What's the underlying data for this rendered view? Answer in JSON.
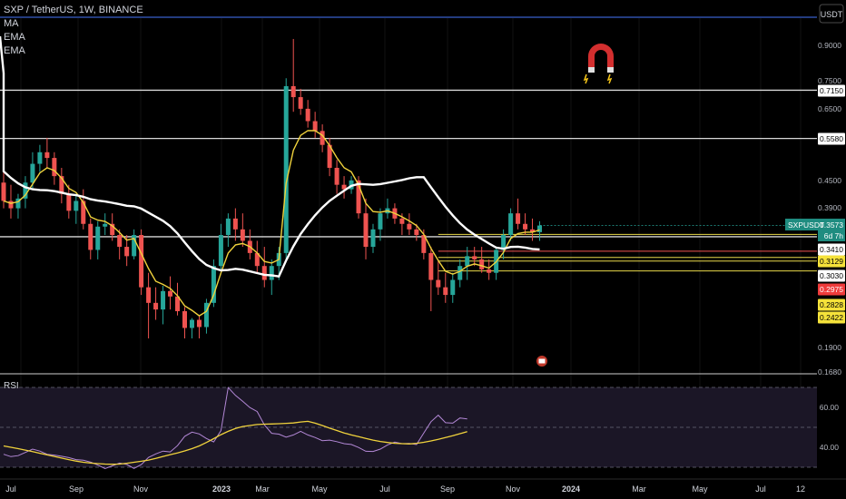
{
  "header": {
    "symbol_line": "SXP / TetherUS, 1W, BINANCE",
    "indicators": [
      "MA",
      "EMA",
      "EMA"
    ]
  },
  "currency_button": "USDT",
  "rsi_label": "RSI",
  "colors": {
    "up": "#26a69a",
    "down": "#ef5350",
    "ma": "#ffffff",
    "ema": "#f0d23c",
    "rsi": "#b388d6",
    "rsi_ma": "#f0d23c"
  },
  "chart_data": {
    "type": "candlestick",
    "price_scale": "log",
    "price_axis_ticks": [
      "0.9000",
      "0.7500",
      "0.6500",
      "0.4500",
      "0.3900",
      "0.1900",
      "0.1680"
    ],
    "price_tags": [
      {
        "text": "0.7150",
        "style": "white"
      },
      {
        "text": "0.5580",
        "style": "white"
      },
      {
        "text": "0.3410",
        "style": "white"
      },
      {
        "text": "0.3129",
        "style": "yellow"
      },
      {
        "text": "0.3030",
        "style": "white"
      },
      {
        "text": "0.2975",
        "style": "red"
      },
      {
        "text": "0.2828",
        "style": "yellow"
      },
      {
        "text": "0.2422",
        "style": "yellow"
      }
    ],
    "current": {
      "symbol": "SXPUSDT",
      "price": "0.3573",
      "countdown": "6d 7h"
    },
    "horizontal_levels": [
      0.715,
      0.558,
      0.337
    ],
    "support_levels": [
      0.341,
      0.3129,
      0.303,
      0.2975,
      0.2828
    ],
    "time_labels": [
      "Jul",
      "Sep",
      "Nov",
      "2023",
      "Mar",
      "May",
      "Jul",
      "Sep",
      "Nov",
      "2024",
      "Mar",
      "May",
      "Jul",
      "12"
    ],
    "rsi": {
      "levels": [
        "60.00",
        "40.00"
      ],
      "values": [
        36.5,
        35.3,
        35.8,
        37.4,
        39.1,
        38.1,
        36.5,
        36.1,
        35.5,
        34.8,
        33.8,
        33.5,
        32.6,
        31.1,
        29.3,
        30.7,
        32.1,
        31.4,
        29.4,
        31.3,
        34.9,
        36.7,
        38.1,
        37.7,
        40.8,
        45.5,
        47.6,
        46.7,
        44.4,
        42.7,
        48.3,
        69.9,
        66.0,
        63.1,
        59.9,
        57.9,
        51.2,
        47.0,
        46.6,
        45.1,
        46.2,
        48.0,
        46.2,
        44.9,
        43.3,
        43.6,
        42.8,
        41.8,
        41.4,
        39.9,
        38.0,
        37.9,
        39.1,
        41.2,
        42.6,
        41.8,
        41.9,
        41.4,
        47.1,
        52.8,
        56.1,
        52.3,
        52.1,
        54.7,
        54.2
      ],
      "ma_values": [
        40.7,
        40.0,
        39.3,
        38.6,
        37.8,
        37.0,
        36.2,
        35.4,
        34.6,
        33.8,
        33.1,
        32.5,
        32.1,
        31.8,
        31.6,
        31.5,
        31.6,
        32.0,
        32.5,
        33.0,
        33.6,
        34.4,
        35.4,
        36.3,
        37.2,
        38.2,
        39.3,
        40.7,
        42.4,
        44.3,
        46.3,
        48.0,
        49.4,
        50.4,
        50.9,
        51.4,
        51.6,
        51.7,
        51.8,
        52.0,
        52.2,
        52.7,
        53.0,
        52.1,
        50.9,
        49.6,
        48.4,
        47.2,
        46.2,
        45.3,
        44.4,
        43.6,
        42.9,
        42.4,
        42.0,
        41.8,
        41.7,
        42.0,
        42.5,
        43.2,
        44.0,
        44.9,
        45.8,
        46.8,
        47.8
      ]
    },
    "candles": [
      [
        0.445,
        0.5,
        0.39,
        0.405
      ],
      [
        0.405,
        0.44,
        0.37,
        0.39
      ],
      [
        0.39,
        0.42,
        0.37,
        0.41
      ],
      [
        0.41,
        0.46,
        0.39,
        0.445
      ],
      [
        0.445,
        0.52,
        0.43,
        0.49
      ],
      [
        0.49,
        0.54,
        0.47,
        0.52
      ],
      [
        0.52,
        0.56,
        0.48,
        0.505
      ],
      [
        0.505,
        0.52,
        0.44,
        0.46
      ],
      [
        0.46,
        0.48,
        0.4,
        0.42
      ],
      [
        0.42,
        0.44,
        0.37,
        0.385
      ],
      [
        0.385,
        0.42,
        0.36,
        0.405
      ],
      [
        0.405,
        0.43,
        0.35,
        0.36
      ],
      [
        0.36,
        0.37,
        0.3,
        0.315
      ],
      [
        0.315,
        0.365,
        0.3,
        0.355
      ],
      [
        0.355,
        0.38,
        0.34,
        0.36
      ],
      [
        0.36,
        0.38,
        0.33,
        0.34
      ],
      [
        0.34,
        0.35,
        0.3,
        0.32
      ],
      [
        0.32,
        0.34,
        0.29,
        0.305
      ],
      [
        0.305,
        0.35,
        0.3,
        0.34
      ],
      [
        0.34,
        0.35,
        0.25,
        0.26
      ],
      [
        0.26,
        0.28,
        0.2,
        0.24
      ],
      [
        0.24,
        0.26,
        0.22,
        0.232
      ],
      [
        0.232,
        0.262,
        0.215,
        0.255
      ],
      [
        0.255,
        0.275,
        0.232,
        0.248
      ],
      [
        0.248,
        0.266,
        0.225,
        0.23
      ],
      [
        0.23,
        0.235,
        0.2,
        0.211
      ],
      [
        0.211,
        0.222,
        0.2,
        0.22
      ],
      [
        0.22,
        0.225,
        0.2,
        0.212
      ],
      [
        0.212,
        0.245,
        0.205,
        0.24
      ],
      [
        0.24,
        0.3,
        0.235,
        0.29
      ],
      [
        0.29,
        0.36,
        0.285,
        0.34
      ],
      [
        0.34,
        0.38,
        0.32,
        0.37
      ],
      [
        0.37,
        0.39,
        0.33,
        0.35
      ],
      [
        0.35,
        0.38,
        0.32,
        0.33
      ],
      [
        0.33,
        0.35,
        0.3,
        0.31
      ],
      [
        0.31,
        0.33,
        0.28,
        0.29
      ],
      [
        0.29,
        0.32,
        0.26,
        0.27
      ],
      [
        0.27,
        0.3,
        0.25,
        0.29
      ],
      [
        0.29,
        0.32,
        0.27,
        0.31
      ],
      [
        0.31,
        0.76,
        0.3,
        0.73
      ],
      [
        0.73,
        0.93,
        0.64,
        0.69
      ],
      [
        0.69,
        0.72,
        0.63,
        0.65
      ],
      [
        0.65,
        0.68,
        0.59,
        0.61
      ],
      [
        0.61,
        0.64,
        0.56,
        0.58
      ],
      [
        0.58,
        0.6,
        0.52,
        0.54
      ],
      [
        0.54,
        0.56,
        0.46,
        0.48
      ],
      [
        0.48,
        0.5,
        0.42,
        0.44
      ],
      [
        0.44,
        0.46,
        0.41,
        0.43
      ],
      [
        0.43,
        0.46,
        0.42,
        0.45
      ],
      [
        0.45,
        0.46,
        0.37,
        0.38
      ],
      [
        0.38,
        0.41,
        0.3,
        0.32
      ],
      [
        0.32,
        0.36,
        0.31,
        0.35
      ],
      [
        0.35,
        0.39,
        0.33,
        0.38
      ],
      [
        0.38,
        0.41,
        0.37,
        0.39
      ],
      [
        0.39,
        0.4,
        0.36,
        0.37
      ],
      [
        0.37,
        0.38,
        0.34,
        0.36
      ],
      [
        0.36,
        0.38,
        0.34,
        0.35
      ],
      [
        0.35,
        0.36,
        0.33,
        0.34
      ],
      [
        0.34,
        0.35,
        0.3,
        0.31
      ],
      [
        0.31,
        0.32,
        0.23,
        0.27
      ],
      [
        0.27,
        0.3,
        0.25,
        0.26
      ],
      [
        0.26,
        0.28,
        0.24,
        0.25
      ],
      [
        0.25,
        0.28,
        0.24,
        0.27
      ],
      [
        0.27,
        0.3,
        0.26,
        0.29
      ],
      [
        0.29,
        0.32,
        0.27,
        0.305
      ],
      [
        0.305,
        0.32,
        0.29,
        0.3
      ],
      [
        0.3,
        0.32,
        0.28,
        0.285
      ],
      [
        0.285,
        0.3,
        0.27,
        0.28
      ],
      [
        0.28,
        0.32,
        0.27,
        0.315
      ],
      [
        0.315,
        0.35,
        0.3,
        0.34
      ],
      [
        0.34,
        0.39,
        0.33,
        0.38
      ],
      [
        0.38,
        0.41,
        0.35,
        0.36
      ],
      [
        0.36,
        0.38,
        0.34,
        0.35
      ],
      [
        0.35,
        0.37,
        0.33,
        0.345
      ],
      [
        0.345,
        0.365,
        0.33,
        0.357
      ]
    ]
  }
}
